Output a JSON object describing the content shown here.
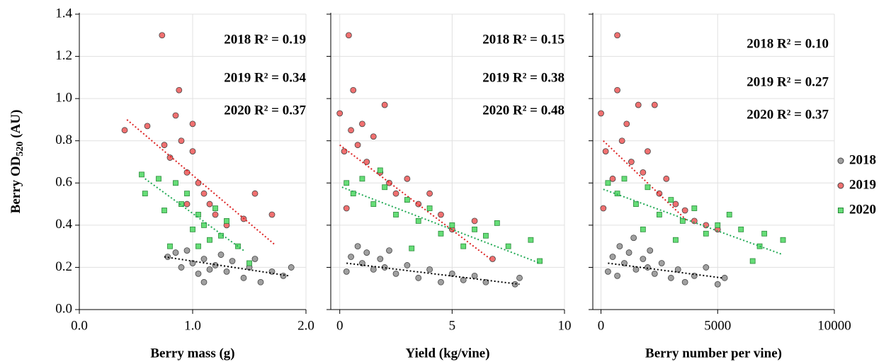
{
  "chart_data": [
    {
      "type": "scatter",
      "xlabel": "Berry mass (g)",
      "ylabel": {
        "text": "Berry OD",
        "subscript": "520",
        "suffix": " (AU)"
      },
      "xlim": [
        0,
        2
      ],
      "ylim": [
        0,
        1.4
      ],
      "xticks": [
        {
          "value": 0,
          "label": "0.0"
        },
        {
          "value": 1,
          "label": "1.0"
        },
        {
          "value": 2,
          "label": "2.0"
        }
      ],
      "yticks": [
        {
          "value": 0,
          "label": "0.0"
        },
        {
          "value": 0.2,
          "label": "0.2"
        },
        {
          "value": 0.4,
          "label": "0.4"
        },
        {
          "value": 0.6,
          "label": "0.6"
        },
        {
          "value": 0.8,
          "label": "0.8"
        },
        {
          "value": 1.0,
          "label": "1.0"
        },
        {
          "value": 1.2,
          "label": "1.2"
        },
        {
          "value": 1.4,
          "label": "1.4"
        }
      ],
      "grid": true,
      "annotations": [
        "2018 R² = 0.19",
        "2019 R² = 0.34",
        "2020 R² = 0.37"
      ],
      "series": [
        {
          "color": "#a0a0a0",
          "marker": "circle",
          "trend_color": "#000000",
          "x": [
            0.78,
            0.85,
            0.9,
            0.95,
            1.0,
            1.05,
            1.1,
            1.15,
            1.2,
            1.3,
            1.35,
            1.45,
            1.5,
            1.6,
            1.7,
            1.8,
            1.87,
            1.1,
            1.25,
            1.55
          ],
          "values": [
            0.25,
            0.27,
            0.2,
            0.28,
            0.22,
            0.17,
            0.24,
            0.19,
            0.21,
            0.18,
            0.23,
            0.15,
            0.2,
            0.13,
            0.18,
            0.16,
            0.2,
            0.13,
            0.26,
            0.24
          ],
          "trend": {
            "x": [
              0.75,
              1.85
            ],
            "values": [
              0.25,
              0.16
            ]
          }
        },
        {
          "color": "#f07070",
          "marker": "circle",
          "trend_color": "#dd2222",
          "x": [
            0.4,
            0.6,
            0.73,
            0.75,
            0.8,
            0.85,
            0.88,
            0.9,
            0.95,
            1.0,
            1.05,
            1.0,
            1.1,
            1.15,
            1.2,
            1.3,
            1.45,
            1.55,
            1.7,
            0.95
          ],
          "values": [
            0.85,
            0.87,
            1.3,
            0.78,
            0.72,
            0.92,
            1.04,
            0.8,
            0.65,
            0.75,
            0.6,
            0.88,
            0.55,
            0.5,
            0.45,
            0.4,
            0.43,
            0.55,
            0.45,
            0.5
          ],
          "trend": {
            "x": [
              0.42,
              1.72
            ],
            "values": [
              0.9,
              0.31
            ]
          }
        },
        {
          "color": "#66dd77",
          "marker": "square",
          "trend_color": "#22aa55",
          "x": [
            0.55,
            0.58,
            0.7,
            0.75,
            0.85,
            0.9,
            0.95,
            1.0,
            1.05,
            1.1,
            1.15,
            1.2,
            1.25,
            1.3,
            1.4,
            0.8,
            1.05,
            1.5
          ],
          "values": [
            0.64,
            0.55,
            0.62,
            0.47,
            0.6,
            0.5,
            0.55,
            0.38,
            0.45,
            0.4,
            0.33,
            0.48,
            0.35,
            0.42,
            0.3,
            0.3,
            0.3,
            0.22
          ],
          "trend": {
            "x": [
              0.58,
              1.45
            ],
            "values": [
              0.62,
              0.28
            ]
          }
        }
      ]
    },
    {
      "type": "scatter",
      "xlabel": "Yield (kg/vine)",
      "xlim": [
        -0.4,
        10
      ],
      "ylim": [
        0,
        1.4
      ],
      "xticks": [
        0,
        5,
        10
      ],
      "grid": true,
      "annotations": [
        "2018 R² = 0.15",
        "2019 R² = 0.38",
        "2020 R² = 0.48"
      ],
      "series": [
        {
          "color": "#a0a0a0",
          "marker": "circle",
          "trend_color": "#000000",
          "x": [
            0.3,
            0.5,
            0.8,
            1,
            1.2,
            1.5,
            1.8,
            2,
            2.5,
            3,
            3.5,
            4,
            4.5,
            5,
            5.5,
            6,
            6.5,
            7.8,
            8,
            2.2
          ],
          "values": [
            0.18,
            0.25,
            0.3,
            0.22,
            0.27,
            0.19,
            0.24,
            0.2,
            0.17,
            0.21,
            0.15,
            0.19,
            0.13,
            0.17,
            0.14,
            0.16,
            0.13,
            0.12,
            0.15,
            0.28
          ],
          "trend": {
            "x": [
              0.3,
              8
            ],
            "values": [
              0.22,
              0.12
            ]
          }
        },
        {
          "color": "#f07070",
          "marker": "circle",
          "trend_color": "#dd2222",
          "x": [
            0,
            0.2,
            0.4,
            0.5,
            0.6,
            0.8,
            1,
            1.2,
            1.5,
            1.8,
            2,
            2.2,
            2.5,
            3,
            3.5,
            4,
            4.5,
            5,
            6,
            6.8,
            0.3
          ],
          "values": [
            0.93,
            0.75,
            1.3,
            0.85,
            1.04,
            0.78,
            0.88,
            0.7,
            0.82,
            0.65,
            0.97,
            0.6,
            0.55,
            0.62,
            0.5,
            0.55,
            0.45,
            0.38,
            0.42,
            0.24,
            0.48
          ],
          "trend": {
            "x": [
              0,
              6.7
            ],
            "values": [
              0.78,
              0.24
            ]
          }
        },
        {
          "color": "#66dd77",
          "marker": "square",
          "trend_color": "#22aa55",
          "x": [
            0.3,
            0.6,
            1,
            1.5,
            2,
            2.5,
            3,
            3.5,
            4,
            4.5,
            5,
            5.5,
            6,
            6.5,
            7,
            7.5,
            8.5,
            8.9,
            1.8,
            3.2
          ],
          "values": [
            0.6,
            0.55,
            0.62,
            0.5,
            0.58,
            0.45,
            0.52,
            0.42,
            0.48,
            0.36,
            0.4,
            0.3,
            0.38,
            0.35,
            0.41,
            0.3,
            0.33,
            0.23,
            0.66,
            0.29
          ],
          "trend": {
            "x": [
              0.1,
              8.9
            ],
            "values": [
              0.58,
              0.22
            ]
          }
        }
      ]
    },
    {
      "type": "scatter",
      "xlabel": "Berry number per vine)",
      "xlim": [
        -350,
        10000
      ],
      "ylim": [
        0,
        1.4
      ],
      "xticks": [
        0,
        5000,
        10000
      ],
      "grid": true,
      "annotations": [
        "2018 R² = 0.10",
        "2019 R² = 0.27",
        "2020 R² = 0.37"
      ],
      "legend": "right",
      "series": [
        {
          "name": "2018",
          "color": "#a0a0a0",
          "marker": "circle",
          "trend_color": "#000000",
          "x": [
            300,
            500,
            800,
            1000,
            1200,
            1500,
            1800,
            2000,
            2300,
            2600,
            3000,
            3300,
            3600,
            4000,
            4500,
            5000,
            5300,
            1400,
            700,
            2100
          ],
          "values": [
            0.18,
            0.25,
            0.3,
            0.22,
            0.27,
            0.19,
            0.24,
            0.2,
            0.17,
            0.22,
            0.15,
            0.19,
            0.13,
            0.16,
            0.2,
            0.12,
            0.15,
            0.34,
            0.16,
            0.28
          ],
          "trend": {
            "x": [
              300,
              5200
            ],
            "values": [
              0.22,
              0.15
            ]
          }
        },
        {
          "name": "2019",
          "color": "#f07070",
          "marker": "circle",
          "trend_color": "#dd2222",
          "x": [
            0,
            200,
            500,
            700,
            700,
            900,
            1100,
            1300,
            1600,
            1800,
            2000,
            2300,
            2500,
            2800,
            3200,
            3600,
            4000,
            4500,
            5000,
            100
          ],
          "values": [
            0.93,
            0.75,
            0.62,
            1.3,
            1.04,
            0.8,
            0.88,
            0.7,
            0.97,
            0.65,
            0.75,
            0.97,
            0.55,
            0.62,
            0.5,
            0.47,
            0.42,
            0.4,
            0.38,
            0.48
          ],
          "trend": {
            "x": [
              100,
              3700
            ],
            "values": [
              0.8,
              0.42
            ]
          }
        },
        {
          "name": "2020",
          "color": "#66dd77",
          "marker": "square",
          "trend_color": "#22aa55",
          "x": [
            300,
            700,
            1000,
            1500,
            2000,
            2500,
            3000,
            3500,
            4000,
            4500,
            5000,
            5500,
            6000,
            6500,
            7000,
            7800,
            6800,
            3200,
            1800
          ],
          "values": [
            0.6,
            0.55,
            0.62,
            0.5,
            0.58,
            0.45,
            0.52,
            0.42,
            0.48,
            0.36,
            0.4,
            0.45,
            0.38,
            0.23,
            0.36,
            0.33,
            0.3,
            0.33,
            0.38
          ],
          "trend": {
            "x": [
              100,
              7800
            ],
            "values": [
              0.57,
              0.26
            ]
          }
        }
      ]
    }
  ]
}
